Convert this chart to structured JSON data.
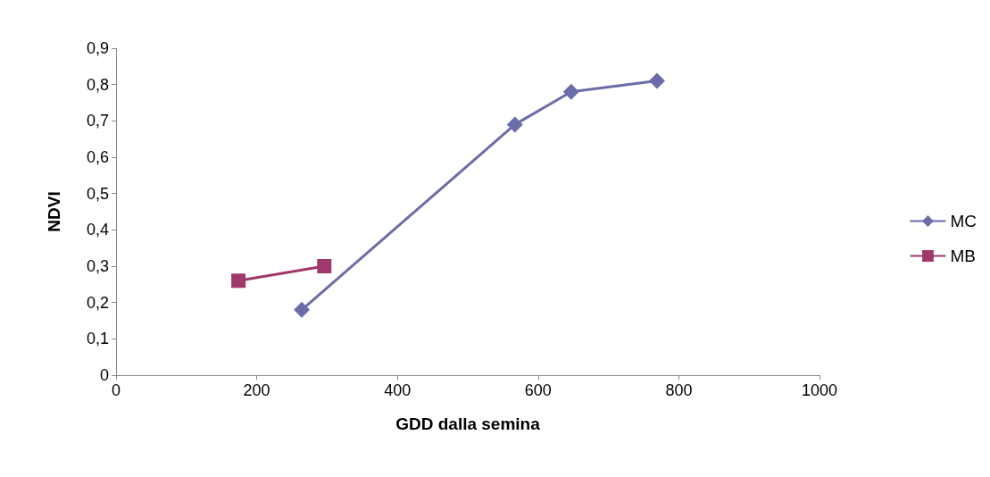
{
  "chart_data": {
    "type": "line",
    "xlabel": "GDD dalla semina",
    "ylabel": "NDVI",
    "series": [
      {
        "name": "MC",
        "color": "#6b6da8",
        "marker": "diamond",
        "x": [
          264,
          567,
          647,
          769
        ],
        "values": [
          0.18,
          0.69,
          0.78,
          0.81
        ]
      },
      {
        "name": "MB",
        "color": "#a0396b",
        "marker": "square",
        "x": [
          174,
          296
        ],
        "values": [
          0.26,
          0.3
        ]
      }
    ],
    "xlim": [
      0,
      1000
    ],
    "xticks": [
      0,
      200,
      400,
      600,
      800,
      1000
    ],
    "ylim": [
      0,
      0.9
    ],
    "yticks": [
      0,
      {
        "value": 0.1,
        "label": "0,1"
      },
      {
        "value": 0.2,
        "label": "0,2"
      },
      {
        "value": 0.3,
        "label": "0,3"
      },
      {
        "value": 0.4,
        "label": "0,4"
      },
      {
        "value": 0.5,
        "label": "0,5"
      },
      {
        "value": 0.6,
        "label": "0,6"
      },
      {
        "value": 0.7,
        "label": "0,7"
      },
      {
        "value": 0.8,
        "label": "0,8"
      },
      {
        "value": 0.9,
        "label": "0,9"
      }
    ],
    "legend": "right",
    "grid": false
  }
}
